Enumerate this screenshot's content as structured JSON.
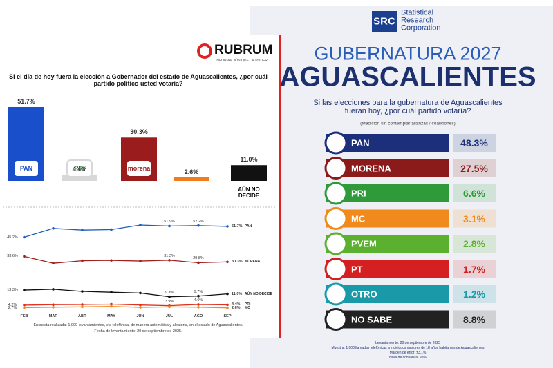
{
  "left_header": {
    "brand": "RUBRUM",
    "tagline": "INFORMACIÓN QUE DA PODER"
  },
  "left_footnote": [
    "Encuesta realizada: 1,000 levantamientos, vía telefónica, de manera automática y aleatoria, en el estado de Aguascalientes.",
    "Fecha de levantamiento: 20 de septiembre de 2025."
  ],
  "right_header": {
    "logo": "SRC",
    "brand": "Statistical Research Corporation",
    "kicker": "GUBERNATURA 2027",
    "title": "AGUASCALIENTES",
    "question": "Si las elecciones para la gubernatura de Aguascalientes fueran hoy, ¿por cuál partido votaría?",
    "note": "(Medición sin contemplar alianzas / coaliciones)"
  },
  "right_footnote": [
    "Levantamiento: 20 de septiembre de 2025",
    "Muestra: 1,000 llamadas telefónicas a individuos mayores de 18 años habitantes de Aguascalientes",
    "Margen de error: ±3.1%",
    "Nivel de confianza: 95%"
  ],
  "chart_data": [
    {
      "type": "bar",
      "title": "Si el día de hoy fuera la elección a Gobernador del estado de Aguascalientes, ¿por cuál partido político usted votaría?",
      "categories": [
        "PAN",
        "PRI",
        "morena",
        null,
        "AÚN NO DECIDE"
      ],
      "values": [
        51.7,
        4.4,
        30.3,
        2.6,
        11.0
      ],
      "value_labels": [
        "51.7%",
        "4.4%",
        "30.3%",
        "2.6%",
        "11.0%"
      ],
      "colors": [
        "#1a4fcc",
        "#d8d8d8",
        "#9b1c1c",
        "#f07c1c",
        "#111111"
      ]
    },
    {
      "type": "line",
      "categories": [
        "FEB",
        "MAR",
        "ABR",
        "MAY",
        "JUN",
        "JUL",
        "AGO",
        "SEP"
      ],
      "series": [
        {
          "name": "PAN",
          "color": "#1f5fbf",
          "values": [
            45.2,
            50.5,
            49.5,
            49.8,
            52.5,
            51.9,
            52.2,
            51.7
          ],
          "value_labels": [
            "45.2%",
            null,
            null,
            null,
            null,
            "51.9%",
            "52.2%",
            "51.7%"
          ]
        },
        {
          "name": "MORENA",
          "color": "#a31e1e",
          "values": [
            33.6,
            29.5,
            31.0,
            31.2,
            30.8,
            31.3,
            29.8,
            30.3
          ],
          "value_labels": [
            "33.6%",
            null,
            null,
            null,
            null,
            "31.3%",
            "29.8%",
            "30.3%"
          ]
        },
        {
          "name": "AÚN NO DECIDE",
          "color": "#111111",
          "values": [
            13.3,
            13.8,
            12.5,
            12.0,
            11.5,
            9.3,
            9.7,
            11.0
          ],
          "value_labels": [
            "13.3%",
            null,
            null,
            null,
            null,
            "9.3%",
            "9.7%",
            "11.0%"
          ]
        },
        {
          "name": "PRI",
          "color": "#e0301e",
          "values": [
            4.2,
            4.5,
            4.6,
            4.8,
            4.3,
            3.9,
            4.6,
            4.4
          ],
          "value_labels": [
            "4.2%",
            null,
            null,
            null,
            null,
            "3.9%",
            "4.6%",
            "4.4%"
          ]
        },
        {
          "name": "MC",
          "color": "#f08a1c",
          "values": [
            2.7,
            3.0,
            3.2,
            3.5,
            2.9,
            3.2,
            3.0,
            2.6
          ],
          "value_labels": [
            "2.7%",
            null,
            null,
            null,
            null,
            null,
            null,
            "2.6%"
          ]
        }
      ]
    },
    {
      "type": "hbar",
      "categories": [
        "PAN",
        "MORENA",
        "PRI",
        "MC",
        "PVEM",
        "PT",
        "OTRO",
        "NO SABE"
      ],
      "values": [
        48.3,
        27.5,
        6.6,
        3.1,
        2.8,
        1.7,
        1.2,
        8.8
      ],
      "value_labels": [
        "48.3%",
        "27.5%",
        "6.6%",
        "3.1%",
        "2.8%",
        "1.7%",
        "1.2%",
        "8.8%"
      ],
      "colors": [
        "#1c2f7a",
        "#8b1a1a",
        "#2f9a3a",
        "#f08a1c",
        "#5cb030",
        "#d42020",
        "#1a9aa8",
        "#222222"
      ]
    }
  ]
}
